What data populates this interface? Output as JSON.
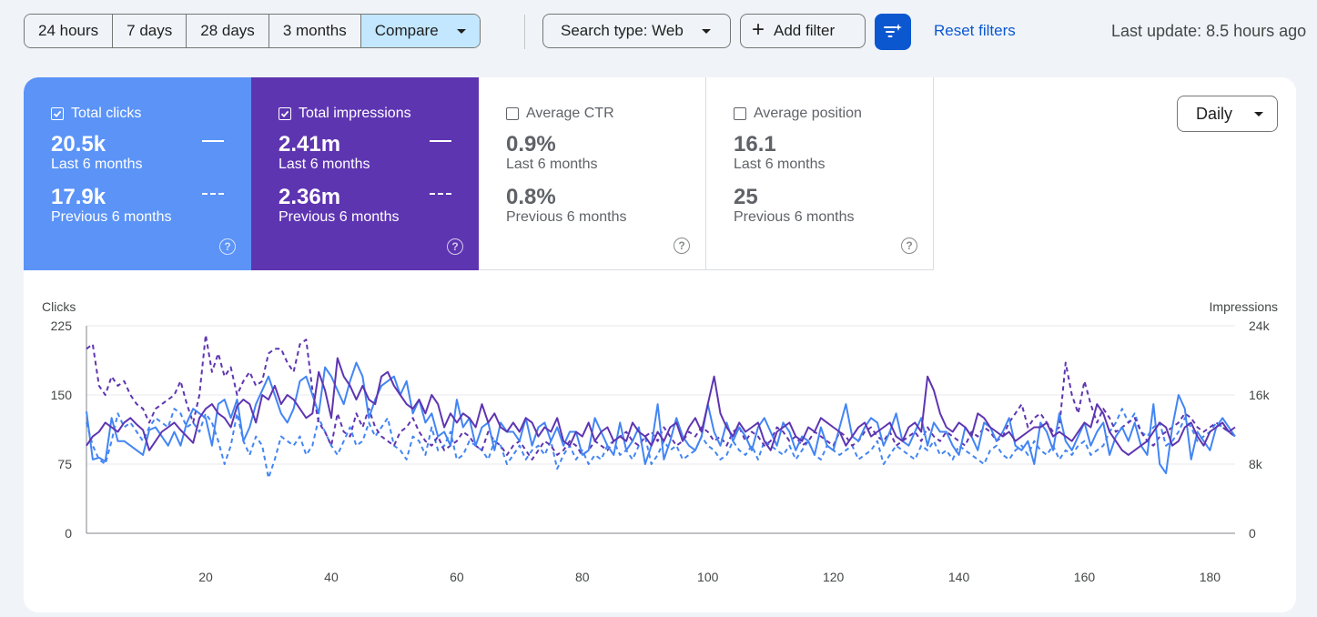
{
  "toolbar": {
    "ranges": [
      "24 hours",
      "7 days",
      "28 days",
      "3 months"
    ],
    "compare_label": "Compare",
    "search_type_label": "Search type: Web",
    "add_filter_label": "Add filter",
    "reset_filters_label": "Reset filters",
    "last_update": "Last update: 8.5 hours ago"
  },
  "metrics": [
    {
      "label": "Total clicks",
      "checked": true,
      "value": "20.5k",
      "period": "Last 6 months",
      "prev_value": "17.9k",
      "prev_period": "Previous 6 months",
      "color": "#5b93f7"
    },
    {
      "label": "Total impressions",
      "checked": true,
      "value": "2.41m",
      "period": "Last 6 months",
      "prev_value": "2.36m",
      "prev_period": "Previous 6 months",
      "color": "#5e35b1"
    },
    {
      "label": "Average CTR",
      "checked": false,
      "value": "0.9%",
      "period": "Last 6 months",
      "prev_value": "0.8%",
      "prev_period": "Previous 6 months"
    },
    {
      "label": "Average position",
      "checked": false,
      "value": "16.1",
      "period": "Last 6 months",
      "prev_value": "25",
      "prev_period": "Previous 6 months"
    }
  ],
  "granularity": "Daily",
  "chart_data": {
    "type": "line",
    "ylabel_left": "Clicks",
    "ylabel_right": "Impressions",
    "yticks_left": [
      "0",
      "75",
      "150",
      "225"
    ],
    "yticks_right": [
      "0",
      "8k",
      "16k",
      "24k"
    ],
    "ylim_left": [
      0,
      225
    ],
    "ylim_right": [
      0,
      24000
    ],
    "xticks": [
      "20",
      "40",
      "60",
      "80",
      "100",
      "120",
      "140",
      "160",
      "180"
    ],
    "xlim": [
      1,
      184
    ],
    "grid": true,
    "series": [
      {
        "name": "Total clicks",
        "axis": "left",
        "style": "solid",
        "color": "#4285f4",
        "values": [
          132,
          80,
          82,
          78,
          125,
          100,
          100,
          95,
          90,
          85,
          112,
          115,
          105,
          95,
          110,
          95,
          120,
          135,
          130,
          125,
          95,
          140,
          145,
          125,
          145,
          100,
          115,
          140,
          155,
          170,
          150,
          130,
          120,
          135,
          165,
          170,
          150,
          130,
          180,
          170,
          155,
          140,
          165,
          185,
          170,
          125,
          145,
          160,
          165,
          170,
          150,
          165,
          130,
          145,
          120,
          130,
          105,
          110,
          95,
          145,
          115,
          125,
          95,
          115,
          120,
          90,
          120,
          110,
          110,
          100,
          125,
          95,
          115,
          120,
          100,
          115,
          95,
          110,
          110,
          85,
          90,
          125,
          110,
          95,
          85,
          120,
          90,
          100,
          115,
          75,
          95,
          140,
          80,
          100,
          125,
          105,
          95,
          90,
          105,
          140,
          110,
          95,
          120,
          100,
          115,
          105,
          90,
          115,
          125,
          110,
          95,
          120,
          110,
          90,
          105,
          100,
          85,
          115,
          95,
          90,
          115,
          140,
          105,
          100,
          115,
          125,
          120,
          95,
          110,
          130,
          100,
          95,
          110,
          125,
          95,
          120,
          110,
          110,
          95,
          85,
          115,
          105,
          90,
          120,
          115,
          100,
          110,
          125,
          95,
          90,
          100,
          75,
          120,
          110,
          90,
          130,
          100,
          90,
          105,
          120,
          95,
          110,
          120,
          85,
          105,
          115,
          100,
          120,
          95,
          85,
          140,
          75,
          65,
          115,
          150,
          135,
          80,
          110,
          100,
          90,
          115,
          125,
          115,
          105
        ]
      },
      {
        "name": "Total impressions",
        "axis": "left",
        "style": "solid",
        "color": "#5e35b1",
        "values": [
          95,
          105,
          110,
          120,
          115,
          110,
          120,
          125,
          118,
          112,
          90,
          100,
          110,
          115,
          120,
          112,
          105,
          98,
          125,
          135,
          140,
          130,
          125,
          115,
          138,
          145,
          140,
          120,
          150,
          145,
          160,
          140,
          150,
          145,
          135,
          125,
          130,
          175,
          155,
          125,
          190,
          170,
          160,
          145,
          160,
          145,
          140,
          170,
          175,
          160,
          150,
          140,
          135,
          145,
          130,
          150,
          140,
          115,
          130,
          120,
          130,
          125,
          115,
          140,
          120,
          130,
          115,
          110,
          120,
          110,
          125,
          120,
          105,
          115,
          110,
          125,
          100,
          95,
          110,
          105,
          120,
          100,
          110,
          115,
          100,
          105,
          100,
          120,
          110,
          105,
          95,
          110,
          100,
          115,
          120,
          100,
          115,
          125,
          110,
          140,
          170,
          130,
          115,
          105,
          120,
          110,
          115,
          120,
          100,
          90,
          110,
          115,
          120,
          105,
          100,
          115,
          110,
          125,
          120,
          115,
          110,
          95,
          105,
          115,
          120,
          105,
          110,
          115,
          120,
          105,
          100,
          115,
          120,
          110,
          170,
          155,
          130,
          115,
          110,
          120,
          115,
          105,
          130,
          125,
          115,
          110,
          105,
          110,
          100,
          105,
          110,
          115,
          115,
          120,
          105,
          110,
          105,
          100,
          110,
          120,
          115,
          140,
          130,
          110,
          100,
          90,
          85,
          90,
          95,
          100,
          110,
          120,
          115,
          95,
          100,
          115,
          120,
          105,
          95,
          110,
          115,
          120,
          110,
          115
        ]
      },
      {
        "name": "Total clicks (previous)",
        "axis": "left",
        "style": "dashed",
        "color": "#4285f4",
        "values": [
          120,
          95,
          80,
          75,
          100,
          130,
          115,
          120,
          110,
          100,
          115,
          125,
          120,
          115,
          135,
          130,
          115,
          120,
          110,
          130,
          120,
          100,
          75,
          95,
          130,
          100,
          85,
          105,
          95,
          60,
          80,
          105,
          100,
          95,
          105,
          85,
          95,
          125,
          110,
          95,
          85,
          100,
          115,
          95,
          100,
          120,
          105,
          115,
          125,
          95,
          90,
          80,
          105,
          100,
          85,
          115,
          90,
          95,
          110,
          80,
          85,
          100,
          95,
          90,
          80,
          100,
          95,
          75,
          85,
          95,
          80,
          90,
          95,
          85,
          100,
          70,
          85,
          95,
          80,
          90,
          75,
          85,
          80,
          95,
          100,
          85,
          90,
          80,
          95,
          105,
          75,
          85,
          100,
          90,
          95,
          80,
          85,
          90,
          105,
          95,
          90,
          80,
          85,
          100,
          90,
          85,
          95,
          80,
          100,
          95,
          90,
          85,
          95,
          80,
          90,
          100,
          85,
          80,
          95,
          90,
          85,
          90,
          95,
          80,
          85,
          90,
          100,
          75,
          85,
          95,
          90,
          85,
          80,
          95,
          90,
          100,
          85,
          90,
          80,
          95,
          90,
          85,
          80,
          75,
          90,
          95,
          85,
          80,
          90,
          95,
          85,
          100,
          90,
          85,
          95,
          80,
          90,
          85,
          95,
          100,
          85,
          90,
          95,
          110,
          120,
          135,
          120,
          130,
          110,
          105,
          115,
          120,
          95,
          100,
          110,
          125,
          115,
          100,
          105,
          110,
          120,
          115,
          110,
          105
        ]
      },
      {
        "name": "Total impressions (previous)",
        "axis": "left",
        "style": "dashed",
        "color": "#5e35b1",
        "values": [
          200,
          205,
          160,
          150,
          170,
          160,
          165,
          150,
          140,
          135,
          120,
          135,
          140,
          145,
          150,
          165,
          140,
          120,
          150,
          215,
          175,
          195,
          170,
          180,
          150,
          165,
          175,
          160,
          165,
          195,
          200,
          200,
          185,
          175,
          205,
          210,
          155,
          120,
          110,
          95,
          130,
          110,
          105,
          130,
          115,
          135,
          115,
          105,
          100,
          95,
          110,
          115,
          125,
          110,
          100,
          95,
          105,
          90,
          95,
          100,
          110,
          105,
          95,
          90,
          110,
          100,
          95,
          85,
          95,
          100,
          90,
          80,
          90,
          100,
          95,
          85,
          90,
          100,
          95,
          85,
          90,
          100,
          95,
          90,
          100,
          105,
          110,
          100,
          95,
          105,
          110,
          100,
          115,
          105,
          95,
          100,
          110,
          105,
          115,
          110,
          100,
          105,
          95,
          110,
          115,
          100,
          110,
          105,
          95,
          100,
          115,
          110,
          100,
          105,
          95,
          100,
          110,
          105,
          100,
          95,
          110,
          105,
          95,
          100,
          110,
          115,
          105,
          100,
          110,
          95,
          100,
          105,
          110,
          100,
          115,
          105,
          100,
          110,
          105,
          100,
          95,
          110,
          105,
          115,
          110,
          100,
          105,
          120,
          130,
          140,
          115,
          125,
          130,
          120,
          110,
          115,
          185,
          150,
          130,
          165,
          140,
          120,
          135,
          125,
          110,
          115,
          120,
          125,
          110,
          100,
          95,
          105,
          110,
          115,
          120,
          130,
          125,
          115,
          110,
          115,
          120,
          115,
          110,
          105
        ]
      }
    ]
  }
}
